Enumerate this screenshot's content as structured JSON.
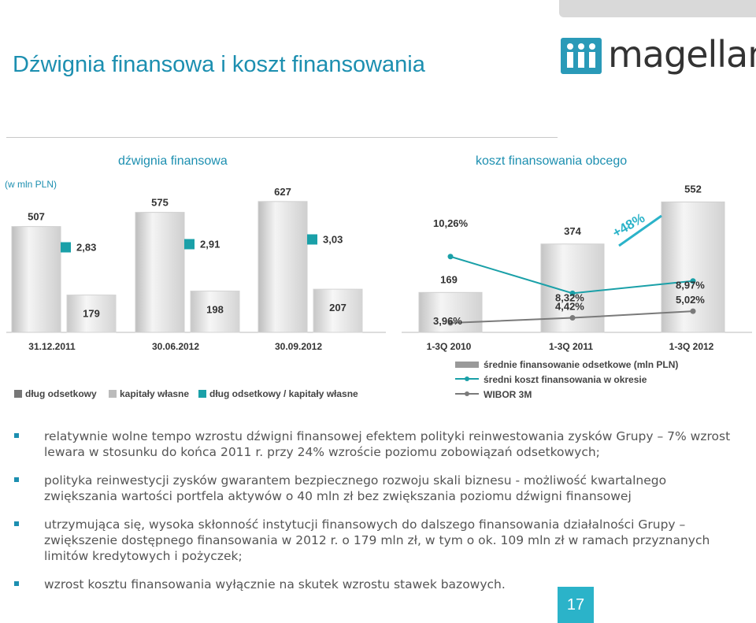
{
  "header": {
    "title": "Dźwignia finansowa i koszt finansowania",
    "logo_text": "magellan"
  },
  "left_chart": {
    "subtitle": "dźwignia finansowa",
    "unit": "(w mln PLN)",
    "categories": [
      "31.12.2011",
      "30.06.2012",
      "30.09.2012"
    ],
    "debt_labels": [
      "507",
      "575",
      "627"
    ],
    "equity_labels": [
      "179",
      "198",
      "207"
    ],
    "ratio_labels": [
      "2,83",
      "2,91",
      "3,03"
    ],
    "legend": [
      "dług odsetkowy",
      "kapitały własne",
      "dług odsetkowy / kapitały własne"
    ]
  },
  "right_chart": {
    "subtitle": "koszt finansowania obcego",
    "categories": [
      "1-3Q 2010",
      "1-3Q 2011",
      "1-3Q 2012"
    ],
    "bar_labels": [
      "169",
      "374",
      "552"
    ],
    "cost_labels": [
      "10,26%",
      "8,32%",
      "8,97%"
    ],
    "wibor_labels": [
      "3,96%",
      "4,42%",
      "5,02%"
    ],
    "growth_label": "+48%",
    "legend": [
      "średnie finansowanie odsetkowe (mln PLN)",
      "średni koszt finansowania w okresie",
      "WIBOR 3M"
    ]
  },
  "chart_data": [
    {
      "type": "bar",
      "title": "dźwignia finansowa",
      "categories": [
        "31.12.2011",
        "30.06.2012",
        "30.09.2012"
      ],
      "series": [
        {
          "name": "dług odsetkowy",
          "values": [
            507,
            575,
            627
          ]
        },
        {
          "name": "kapitały własne",
          "values": [
            179,
            198,
            207
          ]
        },
        {
          "name": "dług odsetkowy / kapitały własne",
          "values": [
            2.83,
            2.91,
            3.03
          ]
        }
      ]
    },
    {
      "type": "bar",
      "title": "koszt finansowania obcego",
      "categories": [
        "1-3Q 2010",
        "1-3Q 2011",
        "1-3Q 2012"
      ],
      "series": [
        {
          "name": "średnie finansowanie odsetkowe (mln PLN)",
          "values": [
            169,
            374,
            552
          ]
        },
        {
          "name": "średni koszt finansowania w okresie",
          "values": [
            10.26,
            8.32,
            8.97
          ]
        },
        {
          "name": "WIBOR 3M",
          "values": [
            3.96,
            4.42,
            5.02
          ]
        }
      ]
    }
  ],
  "colors": {
    "accent": "#1c8fb0",
    "teal": "#2bb3c9",
    "marker": "#1aa0a8"
  },
  "bullets": [
    "relatywnie wolne tempo wzrostu dźwigni finansowej efektem polityki reinwestowania zysków Grupy – 7% wzrost lewara w stosunku do końca 2011 r. przy 24% wzroście poziomu zobowiązań odsetkowych;",
    "polityka reinwestycji zysków gwarantem bezpiecznego rozwoju skali biznesu - możliwość kwartalnego zwiększania wartości portfela aktywów o 40 mln zł bez zwiększania poziomu dźwigni finansowej",
    "utrzymująca się, wysoka skłonność instytucji finansowych do dalszego finansowania działalności Grupy – zwiększenie dostępnego finansowania w 2012 r. o 179 mln zł, w tym o ok. 109 mln zł w ramach przyznanych limitów kredytowych i pożyczek;",
    "wzrost kosztu finansowania wyłącznie na skutek wzrostu stawek bazowych."
  ],
  "page_number": "17"
}
